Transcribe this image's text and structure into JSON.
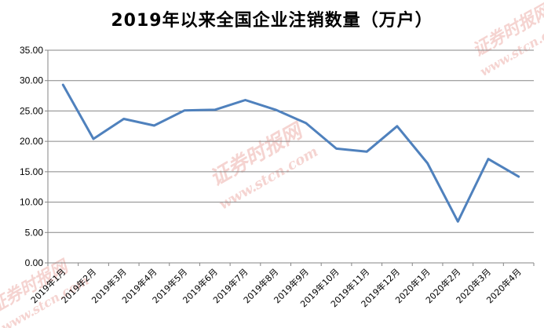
{
  "watermark": {
    "text_cn": "证券时报网",
    "text_url": "www.stcn.com",
    "color": "#f2c6c2"
  },
  "chart_data": {
    "type": "line",
    "title": "2019年以来全国企业注销数量（万户）",
    "xlabel": "",
    "ylabel": "",
    "categories": [
      "2019年1月",
      "2019年2月",
      "2019年3月",
      "2019年4月",
      "2019年5月",
      "2019年6月",
      "2019年7月",
      "2019年8月",
      "2019年9月",
      "2019年10月",
      "2019年11月",
      "2019年12月",
      "2020年1月",
      "2020年2月",
      "2020年3月",
      "2020年4月"
    ],
    "series": [
      {
        "values": [
          29.3,
          20.4,
          23.7,
          22.6,
          25.1,
          25.2,
          26.8,
          25.2,
          23.0,
          18.8,
          18.3,
          22.5,
          16.4,
          6.8,
          17.1,
          14.2
        ],
        "color": "#4f81bd"
      }
    ],
    "ylim": [
      0,
      35
    ],
    "yticks": [
      0,
      5,
      10,
      15,
      20,
      25,
      30,
      35
    ],
    "ytick_labels": [
      "0.00",
      "5.00",
      "10.00",
      "15.00",
      "20.00",
      "25.00",
      "30.00",
      "35.00"
    ],
    "grid": true,
    "legend": "none",
    "axis_color": "#868686",
    "grid_color": "#868686"
  }
}
